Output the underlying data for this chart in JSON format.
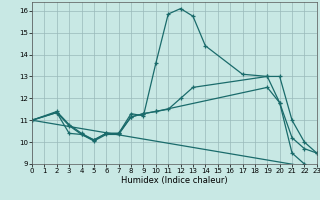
{
  "xlabel": "Humidex (Indice chaleur)",
  "xlim": [
    0,
    23
  ],
  "ylim": [
    9,
    16.4
  ],
  "yticks": [
    9,
    10,
    11,
    12,
    13,
    14,
    15,
    16
  ],
  "xticks": [
    0,
    1,
    2,
    3,
    4,
    5,
    6,
    7,
    8,
    9,
    10,
    11,
    12,
    13,
    14,
    15,
    16,
    17,
    18,
    19,
    20,
    21,
    22,
    23
  ],
  "bg_color": "#c8e8e4",
  "line_color": "#1a6b6b",
  "grid_color": "#9ababa",
  "series": [
    {
      "x": [
        0,
        2,
        3,
        4,
        5,
        6,
        7,
        8,
        9,
        10,
        11,
        12,
        13,
        14,
        17,
        19,
        20,
        21,
        22,
        23
      ],
      "y": [
        11.0,
        11.4,
        10.8,
        10.4,
        10.1,
        10.4,
        10.4,
        11.3,
        11.2,
        13.6,
        15.85,
        16.1,
        15.75,
        14.4,
        13.1,
        13.0,
        11.8,
        9.5,
        9.0,
        8.8
      ],
      "marker": true
    },
    {
      "x": [
        0,
        2,
        3,
        4,
        5,
        6,
        7,
        8,
        9,
        10,
        11,
        12,
        13,
        19,
        20,
        21,
        22,
        23
      ],
      "y": [
        11.0,
        11.35,
        10.75,
        10.35,
        10.1,
        10.4,
        10.4,
        11.15,
        11.3,
        11.4,
        11.5,
        12.0,
        12.5,
        13.0,
        13.0,
        11.0,
        10.0,
        9.5
      ],
      "marker": true
    },
    {
      "x": [
        0,
        2,
        3,
        4,
        5,
        6,
        7,
        8,
        9,
        10,
        19,
        20,
        21,
        22,
        23
      ],
      "y": [
        11.0,
        11.35,
        10.4,
        10.35,
        10.05,
        10.35,
        10.35,
        11.15,
        11.3,
        11.4,
        12.5,
        11.8,
        10.2,
        9.7,
        9.5
      ],
      "marker": true
    },
    {
      "x": [
        0,
        23
      ],
      "y": [
        11.0,
        8.8
      ],
      "marker": false
    }
  ]
}
